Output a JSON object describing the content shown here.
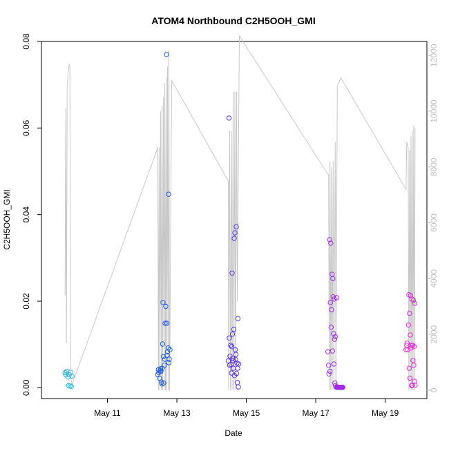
{
  "chart_data": {
    "type": "scatter",
    "title": "ATOM4 Northbound C2H5OOH_GMI",
    "xlabel": "Date",
    "ylabel": "C2H5OOH_GMI",
    "x_ticks": [
      "May 11",
      "May 13",
      "May 15",
      "May 17",
      "May 19"
    ],
    "x_tick_days": [
      11,
      13,
      15,
      17,
      19
    ],
    "xlim_days": [
      9.1,
      20.2
    ],
    "ylim": [
      -0.0025,
      0.08
    ],
    "y_ticks": [
      "0.00",
      "0.02",
      "0.04",
      "0.06",
      "0.08"
    ],
    "y_tick_values": [
      0,
      0.02,
      0.04,
      0.06,
      0.08
    ],
    "y2_ticks": [
      "0",
      "2000",
      "4000",
      "6000",
      "8000",
      "10000",
      "12000"
    ],
    "y2_tick_values": [
      0,
      2000,
      4000,
      6000,
      8000,
      10000,
      12000
    ],
    "y2lim": [
      -300,
      12500
    ],
    "grid": false,
    "legend": "none",
    "series": [
      {
        "color": "#29b6e8",
        "points": [
          [
            9.78,
            0.0035
          ],
          [
            9.8,
            0.003
          ],
          [
            9.83,
            0.0038
          ],
          [
            9.86,
            0.0025
          ],
          [
            9.88,
            0.0005
          ],
          [
            9.9,
            0.003
          ],
          [
            9.92,
            0.0004
          ],
          [
            9.94,
            0.0036
          ],
          [
            9.96,
            0.0003
          ],
          [
            9.98,
            0.0027
          ]
        ]
      },
      {
        "color": "#1e5ee8",
        "points": [
          [
            12.45,
            0.003
          ],
          [
            12.47,
            0.0042
          ],
          [
            12.48,
            0.0035
          ],
          [
            12.5,
            0.0022
          ],
          [
            12.52,
            0.004
          ],
          [
            12.53,
            0.0044
          ],
          [
            12.54,
            0.0038
          ],
          [
            12.56,
            0.0013
          ],
          [
            12.57,
            0.0009
          ],
          [
            12.58,
            0.0045
          ],
          [
            12.59,
            0.0101
          ],
          [
            12.6,
            0.0197
          ],
          [
            12.61,
            0.0072
          ],
          [
            12.62,
            0.0011
          ],
          [
            12.64,
            0.0052
          ],
          [
            12.65,
            0.0066
          ],
          [
            12.66,
            0.0149
          ],
          [
            12.68,
            0.0188
          ],
          [
            12.7,
            0.077
          ],
          [
            12.71,
            0.0149
          ],
          [
            12.72,
            0.0075
          ],
          [
            12.73,
            0.0083
          ],
          [
            12.75,
            0.0092
          ],
          [
            12.76,
            0.0447
          ],
          [
            12.77,
            0.0058
          ],
          [
            12.78,
            0.0066
          ],
          [
            12.8,
            0.0088
          ]
        ]
      },
      {
        "color": "#5a33e8",
        "points": [
          [
            14.48,
            0.0062
          ],
          [
            14.5,
            0.0623
          ],
          [
            14.51,
            0.0115
          ],
          [
            14.52,
            0.0052
          ],
          [
            14.53,
            0.0073
          ],
          [
            14.55,
            0.0098
          ],
          [
            14.56,
            0.0054
          ],
          [
            14.57,
            0.0034
          ],
          [
            14.58,
            0.0095
          ],
          [
            14.59,
            0.0265
          ],
          [
            14.6,
            0.0124
          ],
          [
            14.61,
            0.0068
          ],
          [
            14.62,
            0.0063
          ],
          [
            14.63,
            0.0045
          ],
          [
            14.64,
            0.0135
          ],
          [
            14.65,
            0.0345
          ],
          [
            14.66,
            0.0028
          ],
          [
            14.67,
            0.0358
          ],
          [
            14.68,
            0.0088
          ],
          [
            14.69,
            0.0065
          ],
          [
            14.7,
            0.0077
          ],
          [
            14.71,
            0.0372
          ],
          [
            14.72,
            0.0033
          ],
          [
            14.73,
            0.0057
          ],
          [
            14.74,
            0.0012
          ],
          [
            14.75,
            0.0045
          ],
          [
            14.76,
            0.016
          ],
          [
            14.77,
            0.0002
          ],
          [
            14.78,
            0.0055
          ]
        ]
      },
      {
        "color": "#a12ee8",
        "points": [
          [
            17.35,
            0.0083
          ],
          [
            17.37,
            0.0052
          ],
          [
            17.38,
            0.0032
          ],
          [
            17.4,
            0.0342
          ],
          [
            17.41,
            0.0038
          ],
          [
            17.42,
            0.0197
          ],
          [
            17.43,
            0.0334
          ],
          [
            17.44,
            0.014
          ],
          [
            17.45,
            0.018
          ],
          [
            17.47,
            0.0262
          ],
          [
            17.48,
            0.0085
          ],
          [
            17.49,
            0.0252
          ],
          [
            17.5,
            0.021
          ],
          [
            17.51,
            0.0125
          ],
          [
            17.52,
            0.0055
          ],
          [
            17.53,
            0.0205
          ],
          [
            17.54,
            0.0112
          ],
          [
            17.55,
            0.0011
          ],
          [
            17.56,
            0.0118
          ],
          [
            17.57,
            0.0005
          ],
          [
            17.58,
            0.0002
          ],
          [
            17.6,
            0.0208
          ],
          [
            17.61,
            0.0001
          ],
          [
            17.62,
            0.0001
          ],
          [
            17.63,
            0.0001
          ],
          [
            17.64,
            0.0001
          ],
          [
            17.65,
            0.0001
          ],
          [
            17.66,
            0.0001
          ],
          [
            17.67,
            0.0001
          ],
          [
            17.68,
            0.0001
          ],
          [
            17.69,
            0.0001
          ],
          [
            17.7,
            0.0001
          ],
          [
            17.71,
            0.0001
          ],
          [
            17.72,
            0.0001
          ],
          [
            17.73,
            0.0001
          ],
          [
            17.74,
            0.0001
          ],
          [
            17.75,
            0.0001
          ],
          [
            17.76,
            0.0001
          ],
          [
            17.77,
            0.0001
          ],
          [
            17.78,
            0.0001
          ]
        ]
      },
      {
        "color": "#e22ed6",
        "points": [
          [
            19.6,
            0.0088
          ],
          [
            19.62,
            0.0098
          ],
          [
            19.63,
            0.0103
          ],
          [
            19.65,
            0.0088
          ],
          [
            19.67,
            0.0145
          ],
          [
            19.68,
            0.0215
          ],
          [
            19.69,
            0.0045
          ],
          [
            19.7,
            0.0172
          ],
          [
            19.71,
            0.0022
          ],
          [
            19.72,
            0.0122
          ],
          [
            19.73,
            0.0213
          ],
          [
            19.74,
            0.0092
          ],
          [
            19.75,
            0.0098
          ],
          [
            19.76,
            0.0005
          ],
          [
            19.77,
            0.0205
          ],
          [
            19.78,
            0.0006
          ],
          [
            19.79,
            0.0098
          ],
          [
            19.8,
            0.0063
          ],
          [
            19.81,
            0.0202
          ],
          [
            19.82,
            0.0052
          ],
          [
            19.83,
            0.0095
          ],
          [
            19.84,
            0.0015
          ],
          [
            19.85,
            0.0195
          ],
          [
            19.86,
            0.0006
          ]
        ]
      }
    ],
    "altitude_series": {
      "color": "#c8c8c8",
      "points": [
        [
          9.78,
          3400
        ],
        [
          9.8,
          10100
        ],
        [
          9.82,
          1700
        ],
        [
          9.84,
          10800
        ],
        [
          9.86,
          11200
        ],
        [
          9.88,
          11500
        ],
        [
          9.9,
          11700
        ],
        [
          9.92,
          11600
        ],
        [
          9.94,
          500
        ],
        [
          9.98,
          200
        ],
        [
          12.45,
          8700
        ],
        [
          12.47,
          0
        ],
        [
          12.49,
          8700
        ],
        [
          12.51,
          0
        ],
        [
          12.53,
          10000
        ],
        [
          12.55,
          0
        ],
        [
          12.57,
          10200
        ],
        [
          12.59,
          0
        ],
        [
          12.61,
          10500
        ],
        [
          12.63,
          0
        ],
        [
          12.65,
          11000
        ],
        [
          12.67,
          0
        ],
        [
          12.69,
          11200
        ],
        [
          12.71,
          0
        ],
        [
          12.73,
          11600
        ],
        [
          12.75,
          0
        ],
        [
          12.77,
          12200
        ],
        [
          12.79,
          0
        ],
        [
          12.85,
          11100
        ],
        [
          14.48,
          7500
        ],
        [
          14.49,
          0
        ],
        [
          14.52,
          9300
        ],
        [
          14.54,
          0
        ],
        [
          14.57,
          9300
        ],
        [
          14.59,
          0
        ],
        [
          14.62,
          10700
        ],
        [
          14.64,
          0
        ],
        [
          14.67,
          10700
        ],
        [
          14.69,
          0
        ],
        [
          14.72,
          10700
        ],
        [
          14.74,
          3200
        ],
        [
          14.8,
          12700
        ],
        [
          17.37,
          7700
        ],
        [
          17.39,
          0
        ],
        [
          17.41,
          8200
        ],
        [
          17.43,
          0
        ],
        [
          17.45,
          8000
        ],
        [
          17.47,
          0
        ],
        [
          17.5,
          8200
        ],
        [
          17.52,
          0
        ],
        [
          17.56,
          8900
        ],
        [
          17.58,
          0
        ],
        [
          17.62,
          10900
        ],
        [
          17.66,
          11000
        ],
        [
          17.72,
          11200
        ],
        [
          19.6,
          7200
        ],
        [
          19.62,
          8900
        ],
        [
          19.66,
          8700
        ],
        [
          19.68,
          0
        ],
        [
          19.7,
          8600
        ],
        [
          19.72,
          0
        ],
        [
          19.74,
          9100
        ],
        [
          19.76,
          0
        ],
        [
          19.78,
          9300
        ],
        [
          19.8,
          0
        ],
        [
          19.82,
          9500
        ],
        [
          19.84,
          0
        ],
        [
          19.86,
          9400
        ]
      ]
    }
  }
}
